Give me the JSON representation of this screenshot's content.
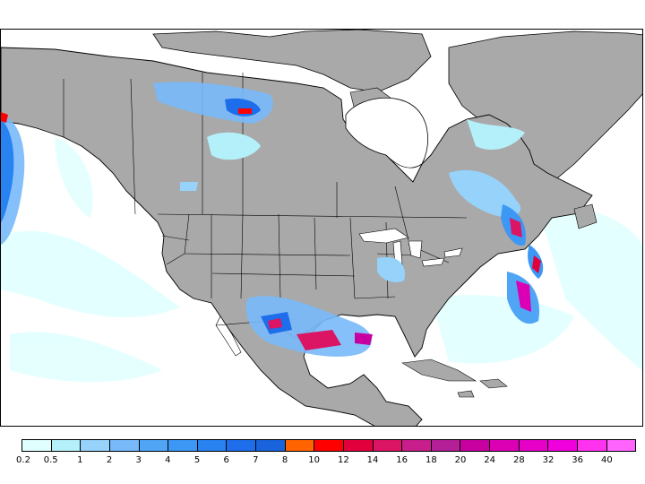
{
  "map": {
    "land_color": "#a9a9a9",
    "ocean_color": "#ffffff",
    "border_color": "#000000"
  },
  "legend": {
    "labels": [
      "0.2",
      "0.5",
      "1",
      "2",
      "3",
      "4",
      "5",
      "6",
      "7",
      "8",
      "10",
      "12",
      "14",
      "16",
      "18",
      "20",
      "24",
      "28",
      "32",
      "36",
      "40"
    ],
    "colors": [
      "#e0ffff",
      "#b4f0fa",
      "#96d2fa",
      "#78b9fa",
      "#50a5f5",
      "#3c97f5",
      "#2882f0",
      "#1e6eeb",
      "#1964dc",
      "#ff6400",
      "#ff0000",
      "#e1003c",
      "#dc1464",
      "#c81e8c",
      "#b41e96",
      "#c800a0",
      "#dc00b4",
      "#e600c8",
      "#f000dc",
      "#ff32f0",
      "#ff64ff"
    ]
  }
}
